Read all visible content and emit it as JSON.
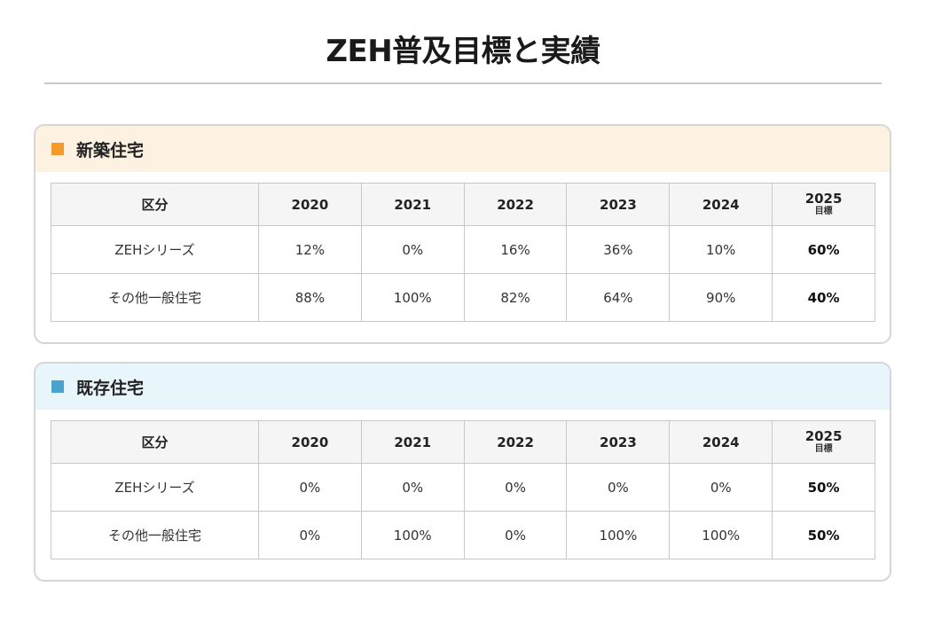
{
  "title": "ZEH普及目標と実績",
  "sections": [
    {
      "heading": "新築住宅",
      "header": {
        "category": "区分",
        "years": [
          "2020",
          "2021",
          "2022",
          "2023",
          "2024"
        ],
        "target_year": "2025",
        "target_label": "目標"
      },
      "rows": [
        {
          "label": "ZEHシリーズ",
          "values": [
            "12%",
            "0%",
            "16%",
            "36%",
            "10%"
          ],
          "target": "60%"
        },
        {
          "label": "その他一般住宅",
          "values": [
            "88%",
            "100%",
            "82%",
            "64%",
            "90%"
          ],
          "target": "40%"
        }
      ]
    },
    {
      "heading": "既存住宅",
      "header": {
        "category": "区分",
        "years": [
          "2020",
          "2021",
          "2022",
          "2023",
          "2024"
        ],
        "target_year": "2025",
        "target_label": "目標"
      },
      "rows": [
        {
          "label": "ZEHシリーズ",
          "values": [
            "0%",
            "0%",
            "0%",
            "0%",
            "0%"
          ],
          "target": "50%"
        },
        {
          "label": "その他一般住宅",
          "values": [
            "0%",
            "100%",
            "0%",
            "100%",
            "100%"
          ],
          "target": "50%"
        }
      ]
    }
  ],
  "colors": {
    "new_accent": "#f39a2a",
    "new_header_bg": "#fdf1e2",
    "existing_accent": "#4aa3cf",
    "existing_header_bg": "#e8f5fb"
  }
}
